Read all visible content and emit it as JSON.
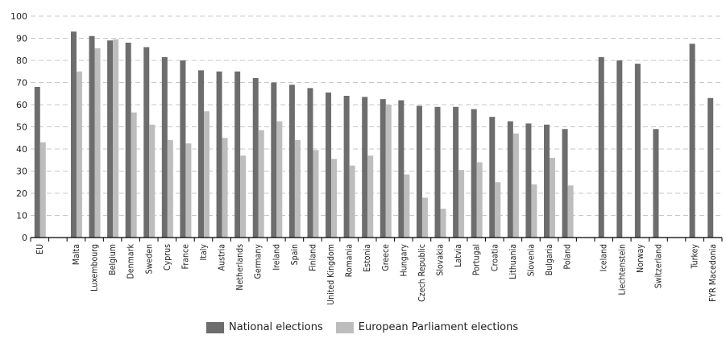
{
  "chart_data": {
    "type": "bar",
    "ylim": [
      0,
      100
    ],
    "yticks": [
      0,
      10,
      20,
      30,
      40,
      50,
      60,
      70,
      80,
      90,
      100
    ],
    "grid": true,
    "legend_position": "bottom-center",
    "colors": {
      "national": "#6d6d6d",
      "european": "#bdbdbd",
      "grid": "#c8c8c8",
      "axis": "#000000"
    },
    "categories": [
      "EU",
      "",
      "Malta",
      "Luxembourg",
      "Belgium",
      "Denmark",
      "Sweden",
      "Cyprus",
      "France",
      "Italy",
      "Austria",
      "Netherlands",
      "Germany",
      "Ireland",
      "Spain",
      "Finland",
      "United Kingdom",
      "Romania",
      "Estonia",
      "Greece",
      "Hungary",
      "Czech Republic",
      "Slovakia",
      "Latvia",
      "Portugal",
      "Croatia",
      "Lithuania",
      "Slovenia",
      "Bulgaria",
      "Poland",
      "",
      "Iceland",
      "Liechtenstein",
      "Norway",
      "Switzerland",
      "",
      "Turkey",
      "FYR Macedonia"
    ],
    "series": [
      {
        "name": "National elections",
        "values": [
          68,
          null,
          93,
          91,
          89,
          88,
          86,
          81.5,
          80,
          75.5,
          75,
          75,
          72,
          70,
          69,
          67.5,
          65.5,
          64,
          63.5,
          62.5,
          62,
          59.5,
          59,
          59,
          58,
          54.5,
          52.5,
          51.5,
          51,
          49,
          null,
          81.5,
          80,
          78.5,
          49,
          null,
          87.5,
          63
        ]
      },
      {
        "name": "European Parliament elections",
        "values": [
          43,
          null,
          75,
          85.5,
          89.5,
          56.5,
          51,
          44,
          42.5,
          57,
          45,
          37,
          48.5,
          52.5,
          44,
          39.5,
          35.5,
          32.5,
          37,
          60,
          28.5,
          18,
          13,
          30.5,
          34,
          25,
          47,
          24,
          36,
          23.5,
          null,
          null,
          null,
          null,
          null,
          null,
          null,
          null
        ]
      }
    ]
  }
}
